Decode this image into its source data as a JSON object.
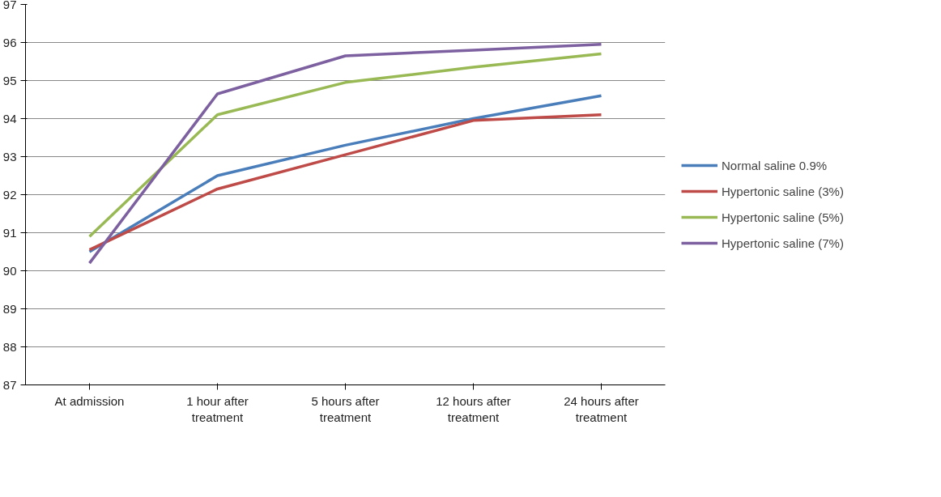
{
  "chart_data": {
    "type": "line",
    "categories": [
      "At admission",
      "1 hour after\ntreatment",
      "5 hours after\ntreatment",
      "12 hours after\ntreatment",
      "24 hours after\ntreatment"
    ],
    "series": [
      {
        "name": "Normal saline 0.9%",
        "color": "#4a7ebb",
        "values": [
          90.5,
          92.5,
          93.3,
          94.0,
          94.6
        ]
      },
      {
        "name": "Hypertonic saline (3%)",
        "color": "#be4b48",
        "values": [
          90.55,
          92.15,
          93.05,
          93.95,
          94.1
        ]
      },
      {
        "name": "Hypertonic saline (5%)",
        "color": "#98b954",
        "values": [
          90.9,
          94.1,
          94.95,
          95.35,
          95.7
        ]
      },
      {
        "name": "Hypertonic saline (7%)",
        "color": "#7d60a0",
        "values": [
          90.2,
          94.65,
          95.65,
          95.8,
          95.95
        ]
      }
    ],
    "ylim": [
      87,
      97
    ],
    "yticks": [
      87,
      88,
      89,
      90,
      91,
      92,
      93,
      94,
      95,
      96,
      97
    ],
    "grid": "y",
    "legend": "right",
    "marker": "none",
    "line_style": "solid"
  }
}
